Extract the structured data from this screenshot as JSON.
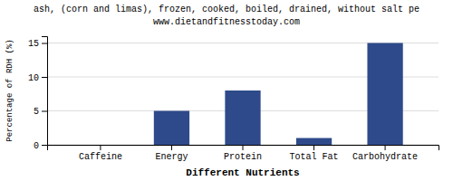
{
  "chart_data": {
    "type": "bar",
    "title": "ash, (corn and limas), frozen, cooked, boiled, drained, without salt pe",
    "subtitle": "www.dietandfitnesstoday.com",
    "categories": [
      "Caffeine",
      "Energy",
      "Protein",
      "Total Fat",
      "Carbohydrate"
    ],
    "values": [
      0,
      5,
      8,
      1,
      15
    ],
    "color": "#2e4a8a",
    "ylabel": "Percentage of RDH (%)",
    "xlabel": "Different Nutrients",
    "ylim": [
      0,
      16
    ],
    "yticks": [
      0,
      5,
      10,
      15
    ],
    "grid": true
  }
}
